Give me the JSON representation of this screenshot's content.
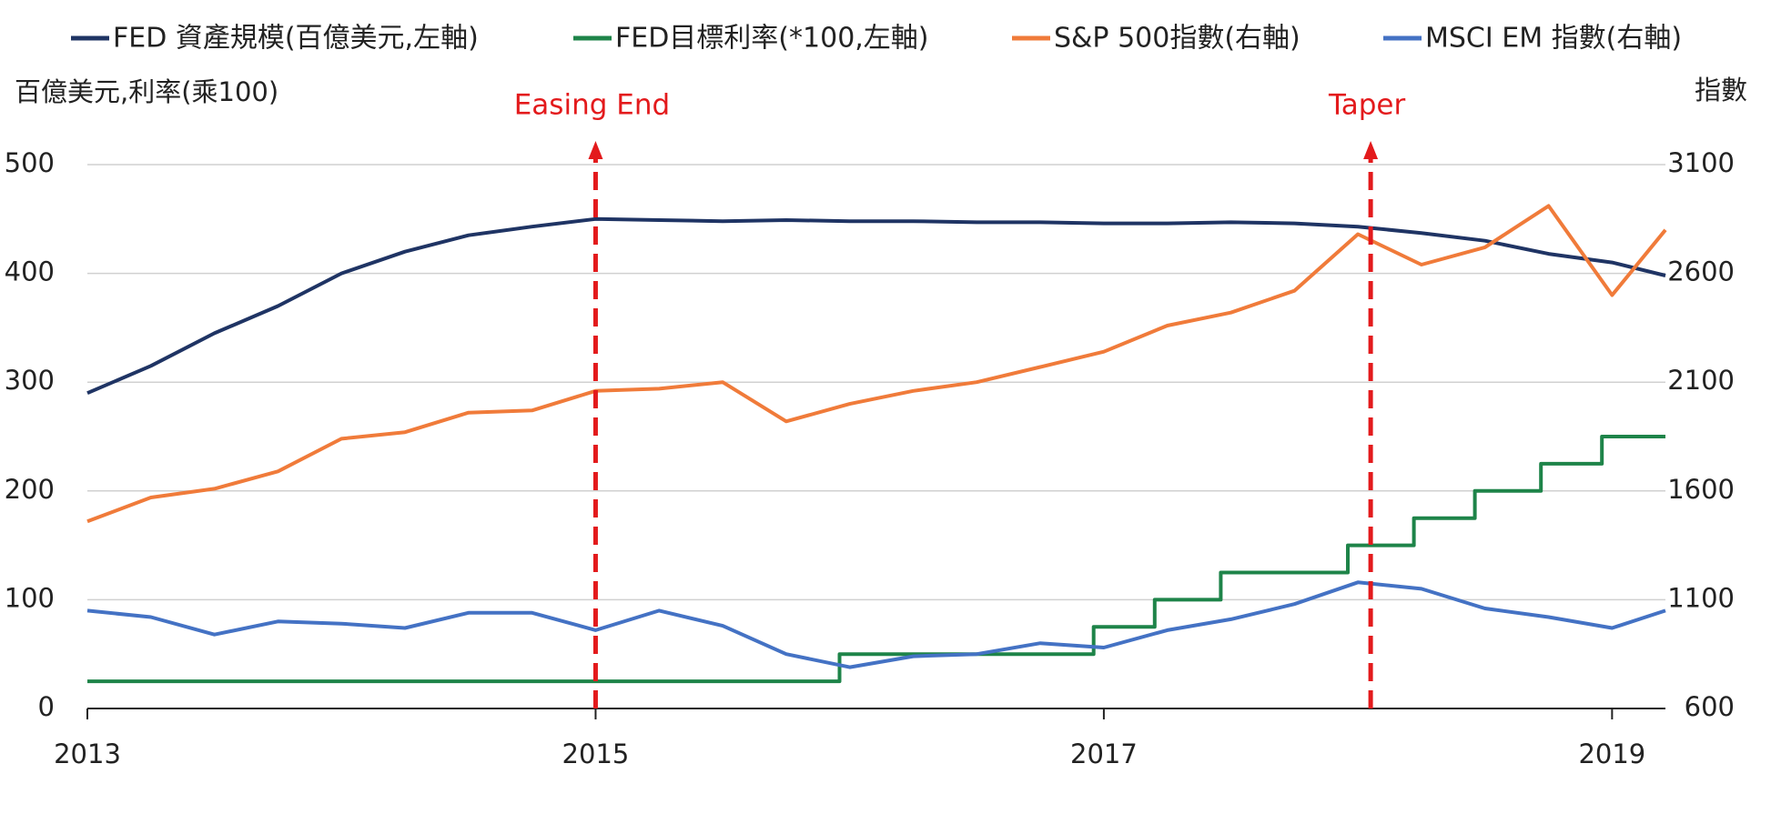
{
  "chart_data": {
    "type": "line",
    "y_label": "百億美元,利率(乘100)",
    "y2_label": "指數",
    "x": [
      2013,
      2013.25,
      2013.5,
      2013.75,
      2014,
      2014.25,
      2014.5,
      2014.75,
      2015,
      2015.25,
      2015.5,
      2015.75,
      2016,
      2016.25,
      2016.5,
      2016.75,
      2017,
      2017.25,
      2017.5,
      2017.75,
      2018,
      2018.25,
      2018.5,
      2018.75,
      2019,
      2019.21
    ],
    "xlim": [
      2013,
      2019.21
    ],
    "xticks": [
      2013,
      2015,
      2017,
      2019
    ],
    "ylim": [
      0,
      500
    ],
    "yticks": [
      0,
      100,
      200,
      300,
      400,
      500
    ],
    "y2lim": [
      600,
      3100
    ],
    "y2ticks": [
      600,
      1100,
      1600,
      2100,
      2600,
      3100
    ],
    "grid": true,
    "series": [
      {
        "name": "FED 資產規模(百億美元,左軸)",
        "color": "#1f3464",
        "values": [
          290,
          315,
          345,
          370,
          400,
          420,
          435,
          443,
          450,
          449,
          448,
          449,
          448,
          448,
          447,
          447,
          446,
          446,
          447,
          446,
          443,
          437,
          430,
          418,
          410,
          398
        ]
      },
      {
        "name": "FED目標利率(*100,左軸)",
        "color": "#1e8449",
        "x": [
          2013,
          2015.96,
          2015.96,
          2016.96,
          2016.96,
          2017.2,
          2017.2,
          2017.46,
          2017.46,
          2017.96,
          2017.96,
          2018.22,
          2018.22,
          2018.46,
          2018.46,
          2018.72,
          2018.72,
          2018.96,
          2018.96,
          2019.21
        ],
        "values": [
          25,
          25,
          50,
          50,
          75,
          75,
          100,
          100,
          125,
          125,
          150,
          150,
          175,
          175,
          200,
          200,
          225,
          225,
          250,
          250
        ]
      },
      {
        "name": "S&P 500指數(右軸)",
        "color": "#f07b3a",
        "axis": "y2",
        "values": [
          1460,
          1570,
          1610,
          1690,
          1840,
          1870,
          1960,
          1970,
          2060,
          2070,
          2100,
          1920,
          2000,
          2060,
          2100,
          2170,
          2240,
          2360,
          2420,
          2520,
          2780,
          2640,
          2720,
          2910,
          2500,
          2800
        ]
      },
      {
        "name": "MSCI EM 指數(右軸)",
        "color": "#4472c4",
        "axis": "y2",
        "values": [
          1050,
          1020,
          940,
          1000,
          990,
          970,
          1040,
          1040,
          960,
          1050,
          980,
          850,
          790,
          840,
          850,
          900,
          880,
          960,
          1010,
          1080,
          1180,
          1150,
          1060,
          1020,
          970,
          1050
        ]
      }
    ],
    "annotations": [
      {
        "text": "Easing End",
        "x": 2015,
        "color": "#e31a1c"
      },
      {
        "text": "Taper",
        "x": 2018.05,
        "color": "#e31a1c"
      }
    ]
  }
}
